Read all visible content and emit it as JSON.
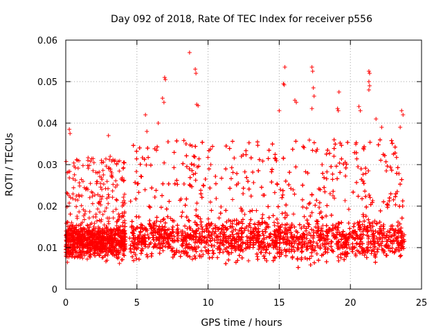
{
  "chart_data": {
    "type": "scatter",
    "title": "Day 092 of 2018, Rate Of TEC Index for receiver p556",
    "xlabel": "GPS time / hours",
    "ylabel": "ROTI / TECUs",
    "xlim": [
      0,
      25
    ],
    "ylim": [
      0,
      0.06
    ],
    "xticks": [
      0,
      5,
      10,
      15,
      20,
      25
    ],
    "xtick_labels": [
      "0",
      "5",
      "10",
      "15",
      "20",
      "25"
    ],
    "yticks": [
      0,
      0.01,
      0.02,
      0.03,
      0.04,
      0.05,
      0.06
    ],
    "ytick_labels": [
      "0",
      "0.01",
      "0.02",
      "0.03",
      "0.04",
      "0.05",
      "0.06"
    ],
    "grid": true,
    "marker": "+",
    "color": "#ff0000",
    "series": [
      {
        "name": "ROTI",
        "segments": [
          {
            "x_range": [
              0.0,
              4.2
            ],
            "base": 0.0115,
            "spread": 0.006,
            "top_typical": 0.032
          },
          {
            "x_range": [
              4.5,
              23.8
            ],
            "base": 0.012,
            "spread": 0.007,
            "top_typical": 0.036
          }
        ],
        "highlights": [
          {
            "x": 0.25,
            "y": 0.0385
          },
          {
            "x": 0.3,
            "y": 0.0375
          },
          {
            "x": 3.0,
            "y": 0.037
          },
          {
            "x": 5.6,
            "y": 0.042
          },
          {
            "x": 5.7,
            "y": 0.038
          },
          {
            "x": 6.5,
            "y": 0.04
          },
          {
            "x": 6.8,
            "y": 0.046
          },
          {
            "x": 6.9,
            "y": 0.045
          },
          {
            "x": 6.95,
            "y": 0.051
          },
          {
            "x": 7.0,
            "y": 0.0505
          },
          {
            "x": 8.7,
            "y": 0.057
          },
          {
            "x": 9.1,
            "y": 0.053
          },
          {
            "x": 9.15,
            "y": 0.052
          },
          {
            "x": 9.2,
            "y": 0.0445
          },
          {
            "x": 9.3,
            "y": 0.0442
          },
          {
            "x": 15.4,
            "y": 0.0535
          },
          {
            "x": 15.3,
            "y": 0.0495
          },
          {
            "x": 15.35,
            "y": 0.0492
          },
          {
            "x": 15.0,
            "y": 0.043
          },
          {
            "x": 16.1,
            "y": 0.0455
          },
          {
            "x": 16.2,
            "y": 0.045
          },
          {
            "x": 17.3,
            "y": 0.0535
          },
          {
            "x": 17.35,
            "y": 0.0525
          },
          {
            "x": 17.4,
            "y": 0.0485
          },
          {
            "x": 17.45,
            "y": 0.0465
          },
          {
            "x": 17.3,
            "y": 0.0435
          },
          {
            "x": 19.2,
            "y": 0.0475
          },
          {
            "x": 19.1,
            "y": 0.0435
          },
          {
            "x": 19.15,
            "y": 0.043
          },
          {
            "x": 20.6,
            "y": 0.044
          },
          {
            "x": 20.7,
            "y": 0.043
          },
          {
            "x": 21.3,
            "y": 0.0525
          },
          {
            "x": 21.35,
            "y": 0.052
          },
          {
            "x": 21.3,
            "y": 0.05
          },
          {
            "x": 21.35,
            "y": 0.049
          },
          {
            "x": 21.3,
            "y": 0.048
          },
          {
            "x": 21.8,
            "y": 0.041
          },
          {
            "x": 22.2,
            "y": 0.039
          },
          {
            "x": 23.6,
            "y": 0.043
          },
          {
            "x": 23.7,
            "y": 0.042
          },
          {
            "x": 23.5,
            "y": 0.039
          }
        ]
      }
    ]
  }
}
